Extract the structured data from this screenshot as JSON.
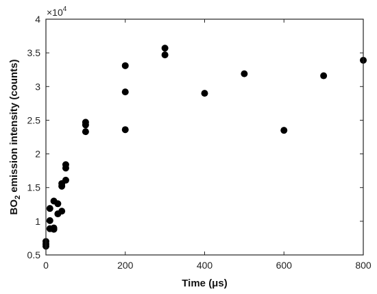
{
  "chart_data": {
    "type": "scatter",
    "xlabel": "Time (μs)",
    "ylabel": "BO2 emission intensity (counts)",
    "ylabel_parts": {
      "pre": "BO",
      "sub": "2",
      "post": " emission intensity (counts)"
    },
    "y_multiplier": {
      "base": "×10",
      "exp": "4"
    },
    "xlim": [
      0,
      800
    ],
    "ylim": [
      0.5,
      4
    ],
    "xticks": [
      0,
      200,
      400,
      600,
      800
    ],
    "yticks": [
      0.5,
      1,
      1.5,
      2,
      2.5,
      3,
      3.5,
      4
    ],
    "xtick_labels": [
      "0",
      "200",
      "400",
      "600",
      "800"
    ],
    "ytick_labels": [
      "0.5",
      "1",
      "1.5",
      "2",
      "2.5",
      "3",
      "3.5",
      "4"
    ],
    "grid": false,
    "series": [
      {
        "color": "#000000",
        "points": [
          {
            "x": 0,
            "y": 0.63
          },
          {
            "x": 0,
            "y": 0.66
          },
          {
            "x": 0,
            "y": 0.7
          },
          {
            "x": 10,
            "y": 0.89
          },
          {
            "x": 10,
            "y": 1.01
          },
          {
            "x": 10,
            "y": 1.19
          },
          {
            "x": 20,
            "y": 0.88
          },
          {
            "x": 20,
            "y": 0.9
          },
          {
            "x": 20,
            "y": 1.3
          },
          {
            "x": 30,
            "y": 1.11
          },
          {
            "x": 30,
            "y": 1.26
          },
          {
            "x": 40,
            "y": 1.15
          },
          {
            "x": 40,
            "y": 1.52
          },
          {
            "x": 40,
            "y": 1.56
          },
          {
            "x": 50,
            "y": 1.61
          },
          {
            "x": 50,
            "y": 1.79
          },
          {
            "x": 50,
            "y": 1.84
          },
          {
            "x": 100,
            "y": 2.33
          },
          {
            "x": 100,
            "y": 2.43
          },
          {
            "x": 100,
            "y": 2.47
          },
          {
            "x": 200,
            "y": 2.36
          },
          {
            "x": 200,
            "y": 2.92
          },
          {
            "x": 200,
            "y": 3.31
          },
          {
            "x": 300,
            "y": 3.47
          },
          {
            "x": 300,
            "y": 3.57
          },
          {
            "x": 400,
            "y": 2.9
          },
          {
            "x": 500,
            "y": 3.19
          },
          {
            "x": 600,
            "y": 2.35
          },
          {
            "x": 700,
            "y": 3.16
          },
          {
            "x": 800,
            "y": 3.39
          }
        ]
      }
    ]
  }
}
